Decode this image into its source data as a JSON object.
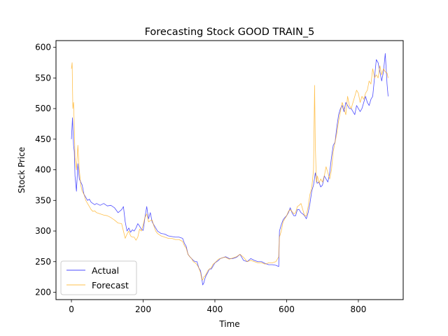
{
  "chart_data": {
    "type": "line",
    "title": "Forecasting Stock GOOD TRAIN_5",
    "xlabel": "Time",
    "ylabel": "Stock Price",
    "xlim": [
      -43,
      925
    ],
    "ylim": [
      188,
      611
    ],
    "xticks": [
      0,
      200,
      400,
      600,
      800
    ],
    "yticks": [
      200,
      250,
      300,
      350,
      400,
      450,
      500,
      550,
      600
    ],
    "grid": false,
    "legend_position": "lower-left",
    "series": [
      {
        "name": "Actual",
        "color": "#0000ff",
        "x": [
          0,
          3,
          6,
          8,
          10,
          14,
          18,
          22,
          26,
          30,
          35,
          40,
          45,
          50,
          55,
          60,
          65,
          70,
          80,
          90,
          100,
          110,
          120,
          130,
          140,
          145,
          150,
          155,
          160,
          165,
          170,
          175,
          180,
          185,
          190,
          195,
          200,
          205,
          210,
          215,
          220,
          225,
          230,
          235,
          240,
          245,
          250,
          260,
          270,
          280,
          290,
          300,
          310,
          315,
          320,
          325,
          330,
          335,
          340,
          345,
          350,
          355,
          360,
          363,
          366,
          369,
          372,
          376,
          380,
          385,
          390,
          395,
          400,
          405,
          410,
          415,
          420,
          425,
          430,
          440,
          450,
          460,
          470,
          480,
          490,
          500,
          510,
          520,
          530,
          540,
          550,
          560,
          570,
          578,
          580,
          585,
          590,
          595,
          600,
          605,
          610,
          615,
          620,
          625,
          630,
          635,
          640,
          645,
          650,
          655,
          660,
          665,
          670,
          675,
          680,
          685,
          690,
          695,
          700,
          705,
          710,
          715,
          720,
          725,
          730,
          735,
          740,
          745,
          750,
          755,
          760,
          765,
          770,
          775,
          780,
          785,
          790,
          795,
          800,
          805,
          810,
          815,
          820,
          825,
          830,
          835,
          840,
          845,
          850,
          855,
          860,
          865,
          870,
          875,
          880,
          883
        ],
        "values": [
          450,
          485,
          440,
          430,
          390,
          365,
          410,
          385,
          380,
          375,
          360,
          355,
          350,
          352,
          347,
          345,
          343,
          345,
          342,
          345,
          341,
          342,
          338,
          330,
          335,
          340,
          315,
          300,
          305,
          298,
          302,
          300,
          305,
          312,
          308,
          303,
          301,
          322,
          340,
          320,
          330,
          315,
          310,
          305,
          300,
          298,
          296,
          295,
          292,
          291,
          290,
          290,
          288,
          280,
          275,
          262,
          258,
          255,
          252,
          250,
          250,
          240,
          235,
          225,
          212,
          215,
          222,
          228,
          232,
          238,
          238,
          243,
          248,
          250,
          252,
          255,
          256,
          257,
          258,
          255,
          255,
          257,
          262,
          252,
          250,
          255,
          252,
          250,
          250,
          247,
          245,
          245,
          244,
          242,
          300,
          310,
          318,
          322,
          325,
          330,
          338,
          330,
          325,
          325,
          335,
          335,
          330,
          328,
          325,
          320,
          330,
          345,
          365,
          375,
          395,
          378,
          380,
          372,
          375,
          390,
          385,
          380,
          395,
          420,
          440,
          445,
          470,
          490,
          500,
          505,
          495,
          510,
          505,
          500,
          500,
          495,
          490,
          505,
          500,
          495,
          500,
          510,
          520,
          510,
          505,
          515,
          520,
          550,
          580,
          575,
          560,
          545,
          560,
          590,
          540,
          520
        ]
      },
      {
        "name": "Forecast",
        "color": "#ffa500",
        "x": [
          0,
          2,
          4,
          6,
          8,
          10,
          14,
          18,
          22,
          26,
          30,
          35,
          40,
          45,
          50,
          55,
          60,
          65,
          70,
          80,
          90,
          100,
          110,
          120,
          130,
          140,
          145,
          150,
          155,
          160,
          165,
          170,
          175,
          180,
          185,
          190,
          195,
          200,
          205,
          210,
          215,
          220,
          225,
          230,
          235,
          240,
          245,
          250,
          260,
          270,
          280,
          290,
          300,
          310,
          315,
          320,
          325,
          330,
          335,
          340,
          345,
          350,
          355,
          360,
          363,
          366,
          369,
          372,
          376,
          380,
          385,
          390,
          395,
          400,
          405,
          410,
          415,
          420,
          425,
          430,
          440,
          450,
          460,
          470,
          480,
          490,
          500,
          510,
          520,
          530,
          540,
          550,
          560,
          570,
          578,
          580,
          585,
          590,
          595,
          600,
          605,
          610,
          615,
          620,
          625,
          630,
          635,
          640,
          645,
          650,
          655,
          660,
          665,
          670,
          675,
          678,
          680,
          683,
          686,
          690,
          695,
          700,
          705,
          710,
          715,
          720,
          725,
          730,
          735,
          740,
          745,
          750,
          755,
          760,
          765,
          770,
          775,
          780,
          785,
          790,
          795,
          800,
          805,
          810,
          815,
          820,
          825,
          830,
          835,
          840,
          845,
          850,
          855,
          860,
          865,
          870,
          875,
          880,
          883
        ],
        "values": [
          565,
          575,
          500,
          510,
          470,
          420,
          400,
          440,
          400,
          375,
          365,
          360,
          350,
          345,
          340,
          335,
          332,
          333,
          330,
          328,
          326,
          325,
          322,
          318,
          313,
          312,
          300,
          288,
          295,
          300,
          292,
          290,
          290,
          285,
          290,
          303,
          300,
          310,
          322,
          328,
          315,
          317,
          318,
          308,
          300,
          296,
          294,
          292,
          290,
          288,
          288,
          286,
          286,
          283,
          276,
          272,
          262,
          258,
          255,
          250,
          248,
          245,
          240,
          232,
          222,
          220,
          225,
          226,
          230,
          235,
          238,
          240,
          246,
          248,
          251,
          254,
          255,
          256,
          257,
          257,
          254,
          256,
          258,
          262,
          257,
          250,
          252,
          250,
          248,
          248,
          246,
          248,
          248,
          250,
          258,
          290,
          300,
          315,
          320,
          325,
          332,
          335,
          332,
          328,
          330,
          340,
          342,
          345,
          335,
          325,
          325,
          340,
          360,
          370,
          400,
          538,
          440,
          380,
          390,
          378,
          385,
          380,
          390,
          405,
          395,
          385,
          400,
          430,
          445,
          460,
          480,
          495,
          510,
          500,
          490,
          520,
          505,
          500,
          510,
          520,
          530,
          525,
          510,
          520,
          515,
          525,
          530,
          545,
          540,
          565,
          550,
          555,
          550,
          570,
          555,
          565,
          560,
          558,
          550
        ]
      }
    ]
  }
}
